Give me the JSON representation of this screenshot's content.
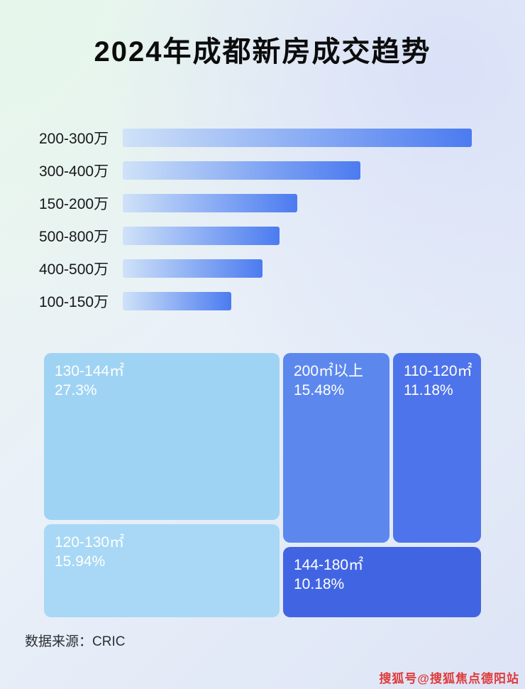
{
  "page": {
    "title": "2024年成都新房成交趋势",
    "source_label": "数据来源：CRIC",
    "watermark": "搜狐号@搜狐焦点德阳站"
  },
  "chart_data": [
    {
      "type": "bar",
      "title": "2024年成都新房成交趋势",
      "orientation": "horizontal",
      "categories": [
        "200-300万",
        "300-400万",
        "150-200万",
        "500-800万",
        "400-500万",
        "100-150万"
      ],
      "values": [
        100,
        68,
        50,
        45,
        40,
        31
      ],
      "value_note": "relative bar lengths as % of longest bar, estimated; no numeric labels shown in image",
      "bar_gradient_start": "#cfe2f8",
      "bar_gradient_end": "#4b7bf0",
      "grid": false,
      "legend": false
    },
    {
      "type": "treemap",
      "items": [
        {
          "label": "130-144㎡",
          "value": "27.3%",
          "color": "#9fd3f3"
        },
        {
          "label": "120-130㎡",
          "value": "15.94%",
          "color": "#a8d8f5"
        },
        {
          "label": "200㎡以上",
          "value": "15.48%",
          "color": "#5c88ee"
        },
        {
          "label": "110-120㎡",
          "value": "11.18%",
          "color": "#4d74ea"
        },
        {
          "label": "144-180㎡",
          "value": "10.18%",
          "color": "#4165e2"
        }
      ]
    }
  ]
}
